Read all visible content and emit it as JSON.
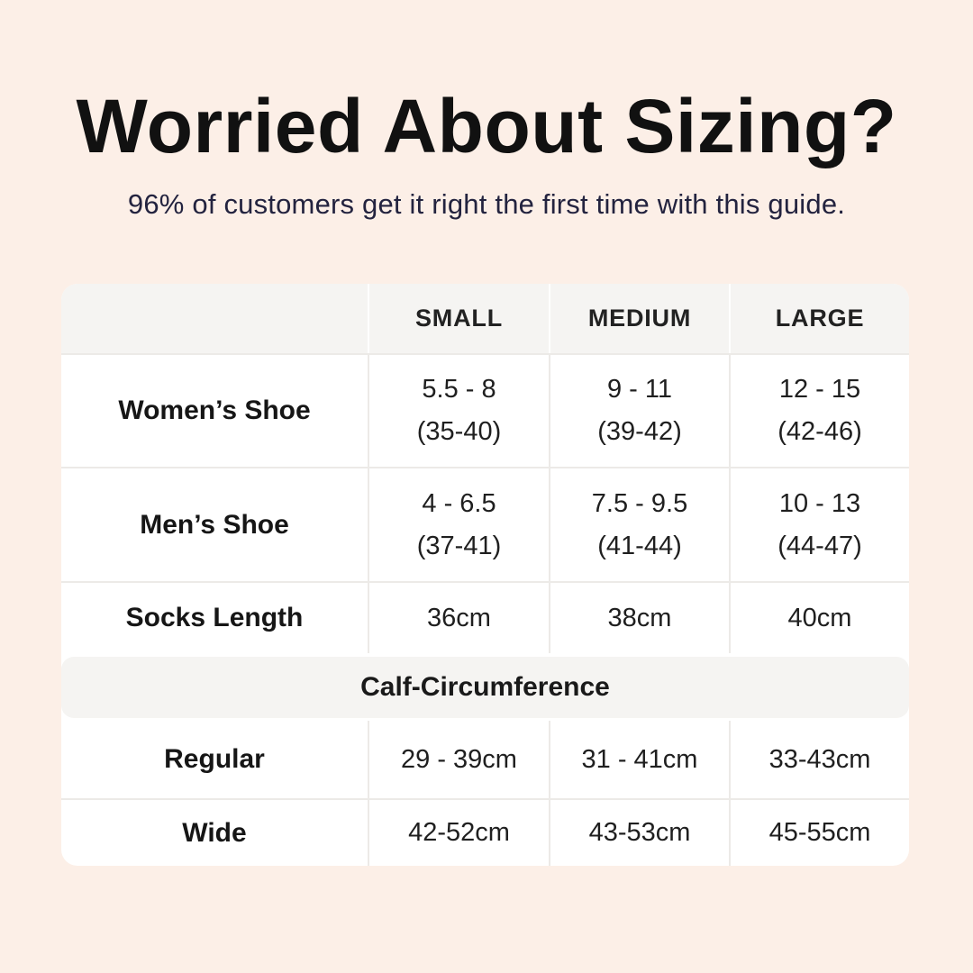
{
  "header": {
    "title": "Worried About Sizing?",
    "subtitle": "96% of customers get it right the first time with this guide."
  },
  "colors": {
    "page_background": "#fcefe7",
    "card_background": "#ffffff",
    "band_background": "#f5f4f2",
    "divider": "#eceae7",
    "title_text": "#111111",
    "subtitle_text": "#23233f",
    "table_text": "#1c1c1c"
  },
  "table": {
    "column_headers": [
      "SMALL",
      "MEDIUM",
      "LARGE"
    ],
    "rows": [
      {
        "label": "Women’s Shoe",
        "small_line1": "5.5 - 8",
        "small_line2": "(35-40)",
        "medium_line1": "9 - 11",
        "medium_line2": "(39-42)",
        "large_line1": "12 - 15",
        "large_line2": "(42-46)"
      },
      {
        "label": "Men’s Shoe",
        "small_line1": "4 - 6.5",
        "small_line2": "(37-41)",
        "medium_line1": "7.5 - 9.5",
        "medium_line2": "(41-44)",
        "large_line1": "10 - 13",
        "large_line2": "(44-47)"
      },
      {
        "label": "Socks Length",
        "small": "36cm",
        "medium": "38cm",
        "large": "40cm"
      }
    ],
    "section_header": "Calf-Circumference",
    "calf_rows": [
      {
        "label": "Regular",
        "small": "29 - 39cm",
        "medium": "31 - 41cm",
        "large": "33-43cm"
      },
      {
        "label": "Wide",
        "small": "42-52cm",
        "medium": "43-53cm",
        "large": "45-55cm"
      }
    ]
  }
}
